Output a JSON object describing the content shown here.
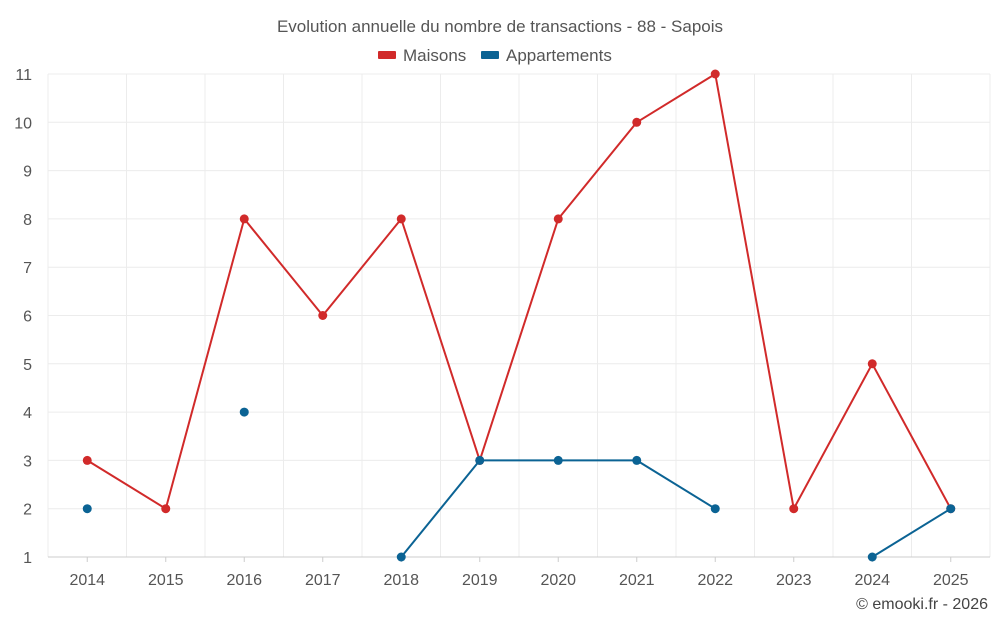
{
  "chart_data": {
    "type": "line",
    "title": "Evolution annuelle du nombre de transactions - 88 - Sapois",
    "xlabel": "",
    "ylabel": "",
    "categories": [
      "2014",
      "2015",
      "2016",
      "2017",
      "2018",
      "2019",
      "2020",
      "2021",
      "2022",
      "2023",
      "2024",
      "2025"
    ],
    "ylim": [
      1,
      11
    ],
    "yticks": [
      "1",
      "2",
      "3",
      "4",
      "5",
      "6",
      "7",
      "8",
      "9",
      "10",
      "11"
    ],
    "grid": true,
    "legend_position": "top-center",
    "series": [
      {
        "name": "Maisons",
        "color": "#d12a2a",
        "values": [
          3,
          2,
          8,
          6,
          8,
          3,
          8,
          10,
          11,
          2,
          5,
          2
        ]
      },
      {
        "name": "Appartements",
        "color": "#0b6394",
        "values": [
          2,
          null,
          4,
          null,
          1,
          3,
          3,
          3,
          2,
          null,
          1,
          2
        ]
      }
    ],
    "credit": "© emooki.fr - 2026"
  }
}
